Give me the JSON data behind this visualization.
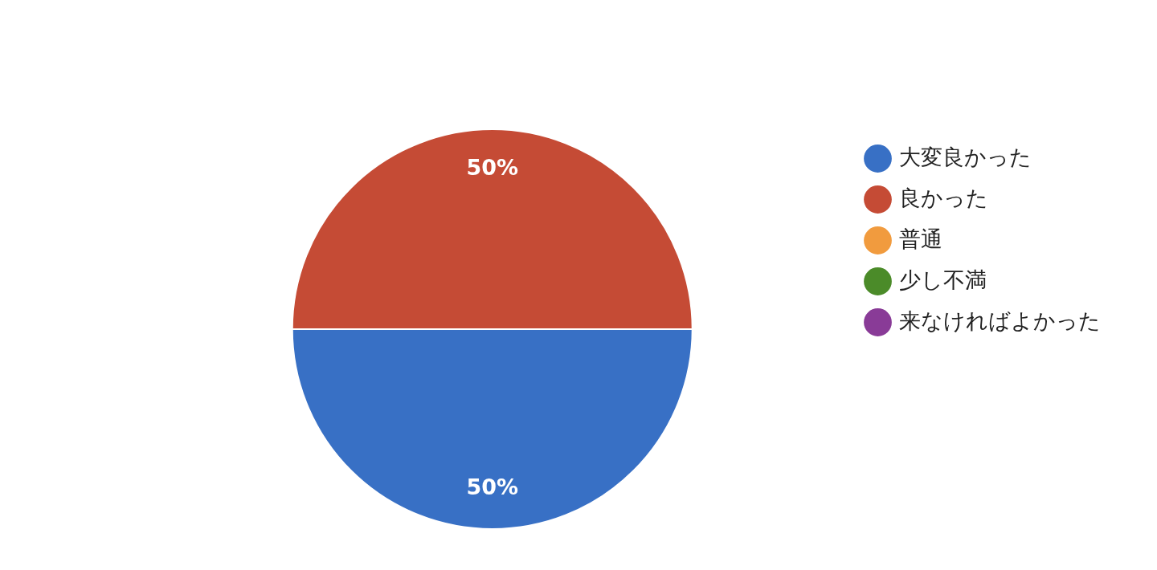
{
  "chart_data": {
    "type": "pie",
    "categories": [
      "大変良かった",
      "良かった",
      "普通",
      "少し不満",
      "来なければよかった"
    ],
    "values": [
      50,
      50,
      0,
      0,
      0
    ],
    "colors": [
      "#3870c5",
      "#c54b35",
      "#f19b3e",
      "#4b8b29",
      "#893b97"
    ],
    "value_labels": [
      "50%",
      "50%",
      null,
      null,
      null
    ],
    "legend": "right"
  }
}
